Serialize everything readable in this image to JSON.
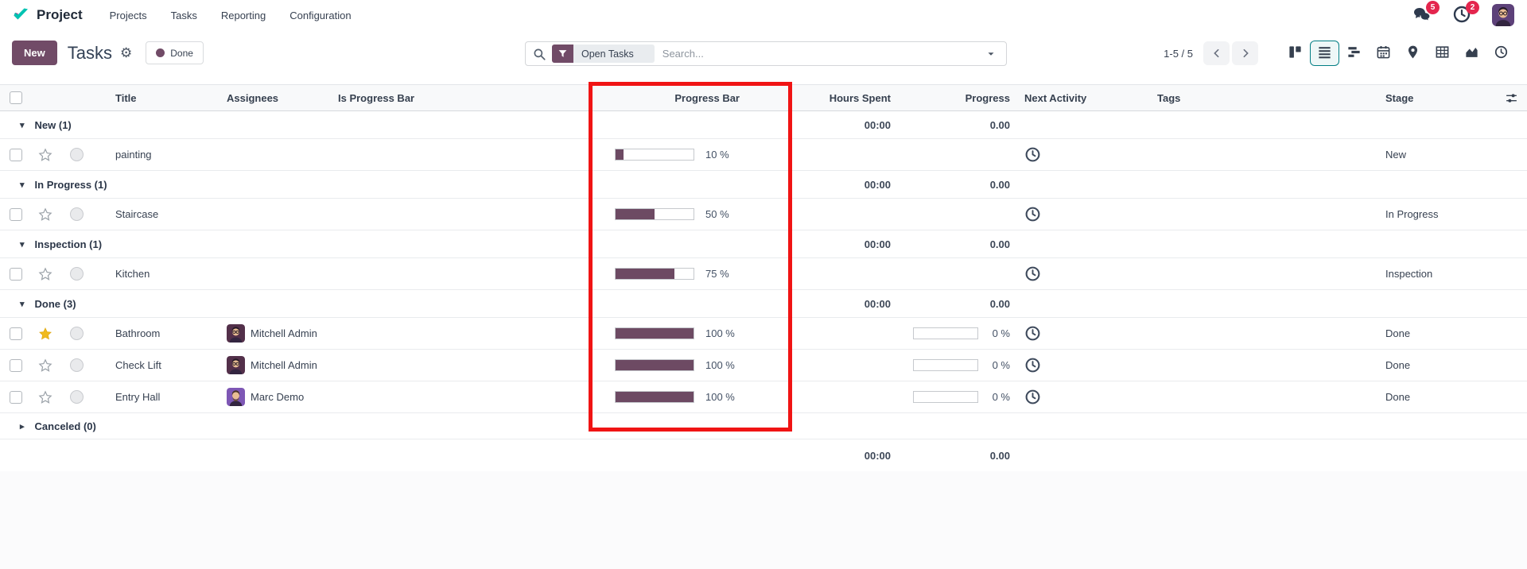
{
  "navbar": {
    "app_name": "Project",
    "menu": [
      "Projects",
      "Tasks",
      "Reporting",
      "Configuration"
    ],
    "messages_badge": "5",
    "activities_badge": "2"
  },
  "control_panel": {
    "new_button": "New",
    "title": "Tasks",
    "stage_filter": "Done",
    "search_facet": "Open Tasks",
    "search_placeholder": "Search...",
    "pager": "1-5 / 5"
  },
  "view_switcher": [
    {
      "name": "kanban",
      "active": false
    },
    {
      "name": "list",
      "active": true
    },
    {
      "name": "gantt",
      "active": false
    },
    {
      "name": "calendar",
      "active": false
    },
    {
      "name": "map",
      "active": false
    },
    {
      "name": "pivot",
      "active": false
    },
    {
      "name": "graph",
      "active": false
    },
    {
      "name": "activity",
      "active": false
    }
  ],
  "table": {
    "headers": {
      "title": "Title",
      "assignees": "Assignees",
      "is_progress_bar": "Is Progress Bar",
      "progress_bar": "Progress Bar",
      "hours_spent": "Hours Spent",
      "progress": "Progress",
      "next_activity": "Next Activity",
      "tags": "Tags",
      "stage": "Stage"
    },
    "groups": [
      {
        "label": "New (1)",
        "hours_spent": "00:00",
        "progress": "0.00",
        "collapsed": false,
        "rows": [
          {
            "title": "painting",
            "assignee": null,
            "progress_bar_pct": 10,
            "progress_bar_label": "10 %",
            "hours_progress": null,
            "stage": "New",
            "starred": false
          }
        ]
      },
      {
        "label": "In Progress (1)",
        "hours_spent": "00:00",
        "progress": "0.00",
        "collapsed": false,
        "rows": [
          {
            "title": "Staircase",
            "assignee": null,
            "progress_bar_pct": 50,
            "progress_bar_label": "50 %",
            "hours_progress": null,
            "stage": "In Progress",
            "starred": false
          }
        ]
      },
      {
        "label": "Inspection (1)",
        "hours_spent": "00:00",
        "progress": "0.00",
        "collapsed": false,
        "rows": [
          {
            "title": "Kitchen",
            "assignee": null,
            "progress_bar_pct": 75,
            "progress_bar_label": "75 %",
            "hours_progress": null,
            "stage": "Inspection",
            "starred": false
          }
        ]
      },
      {
        "label": "Done (3)",
        "hours_spent": "00:00",
        "progress": "0.00",
        "collapsed": false,
        "rows": [
          {
            "title": "Bathroom",
            "assignee": "Mitchell Admin",
            "progress_bar_pct": 100,
            "progress_bar_label": "100 %",
            "hours_progress": "0 %",
            "stage": "Done",
            "starred": true
          },
          {
            "title": "Check Lift",
            "assignee": "Mitchell Admin",
            "progress_bar_pct": 100,
            "progress_bar_label": "100 %",
            "hours_progress": "0 %",
            "stage": "Done",
            "starred": false
          },
          {
            "title": "Entry Hall",
            "assignee": "Marc Demo",
            "progress_bar_pct": 100,
            "progress_bar_label": "100 %",
            "hours_progress": "0 %",
            "stage": "Done",
            "starred": false
          }
        ]
      },
      {
        "label": "Canceled (0)",
        "hours_spent": "",
        "progress": "",
        "collapsed": true,
        "rows": []
      }
    ],
    "footer": {
      "hours_spent": "00:00",
      "progress": "0.00"
    }
  },
  "avatars": {
    "Mitchell Admin": {
      "bg": "#53304a",
      "hair": "#261a26",
      "beard": "none",
      "glasses": true
    },
    "Marc Demo": {
      "bg": "#7e57b5",
      "hair": "#4a3322",
      "beard": "#6e4f33",
      "glasses": false
    },
    "topbar_user": {
      "bg": "#5d4179",
      "hair": "#261a26",
      "beard": "none",
      "glasses": true
    }
  },
  "colors": {
    "accent": "#714B67",
    "progress_fill": "#6d4a63",
    "annotation_red": "#f01414",
    "badge": "#e4264e",
    "active_view": "#017e84",
    "star_filled": "#f0ba1e"
  }
}
